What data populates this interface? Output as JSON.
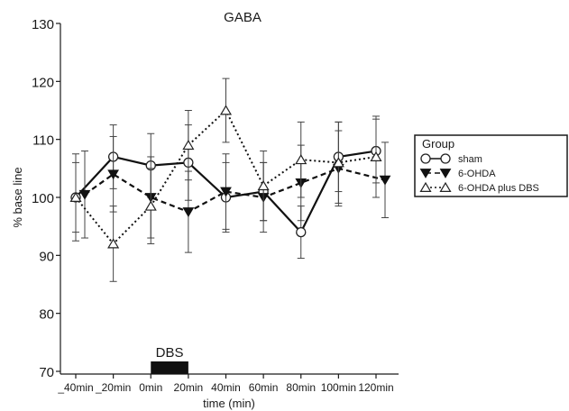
{
  "chart_data": {
    "type": "line",
    "title": "GABA",
    "xlabel": "time (min)",
    "ylabel": "% base line",
    "categories": [
      "_40min",
      "_20min",
      "0min",
      "20min",
      "40min",
      "60min",
      "80min",
      "100min",
      "120min"
    ],
    "yticks": [
      70,
      80,
      90,
      100,
      110,
      120,
      130
    ],
    "ylim": [
      70,
      130
    ],
    "grid": false,
    "legend": {
      "title": "Group",
      "position": "right"
    },
    "annotation": {
      "label": "DBS",
      "from": 0,
      "to": 20
    },
    "series": [
      {
        "name": "sham",
        "marker": "circle",
        "linestyle": "solid",
        "x": [
          -40,
          -20,
          0,
          20,
          40,
          60,
          80,
          100,
          120
        ],
        "values": [
          100,
          107,
          105.5,
          106,
          100,
          101,
          94,
          107,
          108
        ],
        "error": [
          6,
          5.5,
          5.5,
          6.5,
          6,
          5,
          4.5,
          6,
          5.5
        ]
      },
      {
        "name": "6-OHDA",
        "marker": "triangle-down",
        "linestyle": "dashed",
        "x": [
          -40,
          -20,
          0,
          20,
          40,
          60,
          80,
          100,
          120
        ],
        "values": [
          100.5,
          104,
          100,
          97.5,
          101,
          100,
          102.5,
          105,
          103
        ],
        "error": [
          7.5,
          6.5,
          7,
          7,
          6.5,
          6,
          6.5,
          6.5,
          6.5
        ]
      },
      {
        "name": "6-OHDA plus DBS",
        "marker": "triangle-up",
        "linestyle": "dotted",
        "x": [
          -40,
          -20,
          0,
          20,
          40,
          60,
          80,
          100,
          120
        ],
        "values": [
          100,
          92,
          98.5,
          109,
          115,
          102,
          106.5,
          106,
          107
        ],
        "error": [
          7.5,
          6.5,
          6.5,
          6,
          5.5,
          6,
          6.5,
          7,
          7
        ]
      }
    ]
  }
}
